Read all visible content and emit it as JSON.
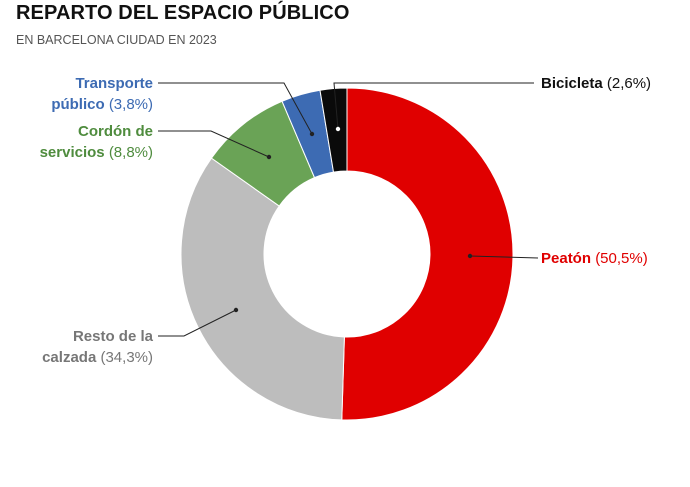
{
  "title": "REPARTO DEL ESPACIO PÚBLICO",
  "subtitle": "EN BARCELONA CIUDAD EN 2023",
  "colors": {
    "peaton": "#e00000",
    "resto": "#bdbdbd",
    "cordon": "#6aa356",
    "transporte": "#3d6bb3",
    "bicicleta": "#0a0a0a"
  },
  "chart_data": {
    "type": "pie",
    "donut": true,
    "title": "REPARTO DEL ESPACIO PÚBLICO",
    "subtitle": "EN BARCELONA CIUDAD EN 2023",
    "slices": [
      {
        "label": "Peatón",
        "value": 50.5,
        "pct_label": "(50,5%)",
        "color": "#e00000"
      },
      {
        "label": "Resto de la calzada",
        "line1": "Resto de la",
        "line2": "calzada",
        "value": 34.3,
        "pct_label": "(34,3%)",
        "color": "#bdbdbd"
      },
      {
        "label": "Cordón de servicios",
        "line1": "Cordón de",
        "line2": "servicios",
        "value": 8.8,
        "pct_label": "(8,8%)",
        "color": "#6aa356"
      },
      {
        "label": "Transporte público",
        "line1": "Transporte",
        "line2": "público",
        "value": 3.8,
        "pct_label": "(3,8%)",
        "color": "#3d6bb3"
      },
      {
        "label": "Bicicleta",
        "value": 2.6,
        "pct_label": "(2,6%)",
        "color": "#0a0a0a"
      }
    ]
  }
}
